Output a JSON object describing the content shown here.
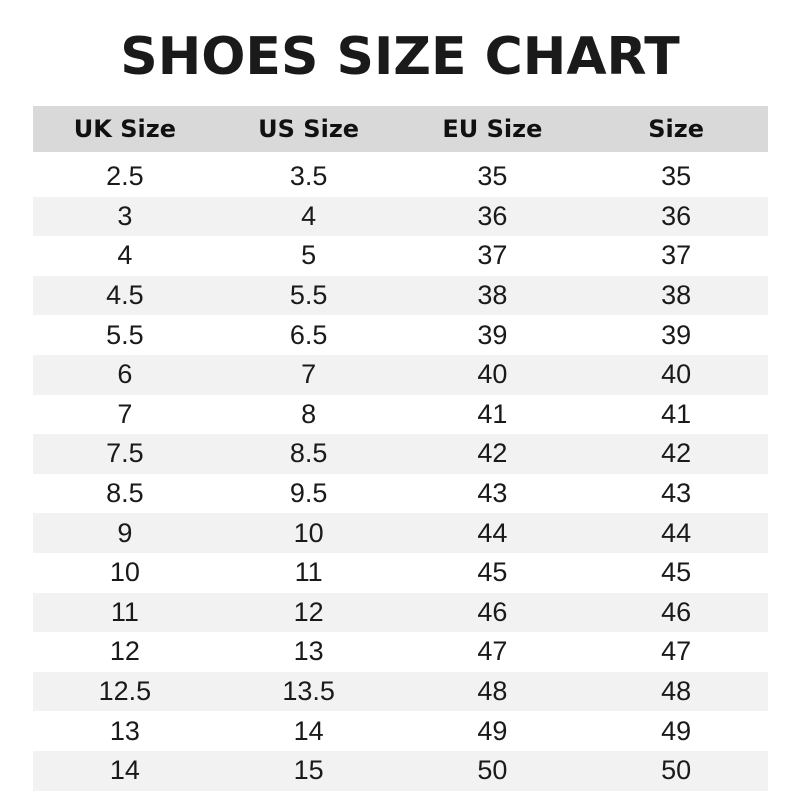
{
  "title": "SHOES SIZE CHART",
  "colors": {
    "header_bg": "#d9d9d9",
    "alt_row_bg": "#f2f2f2",
    "text": "#1a1a1a"
  },
  "table": {
    "headers": [
      "UK Size",
      "US Size",
      "EU Size",
      "Size"
    ],
    "rows": [
      [
        "2.5",
        "3.5",
        "35",
        "35"
      ],
      [
        "3",
        "4",
        "36",
        "36"
      ],
      [
        "4",
        "5",
        "37",
        "37"
      ],
      [
        "4.5",
        "5.5",
        "38",
        "38"
      ],
      [
        "5.5",
        "6.5",
        "39",
        "39"
      ],
      [
        "6",
        "7",
        "40",
        "40"
      ],
      [
        "7",
        "8",
        "41",
        "41"
      ],
      [
        "7.5",
        "8.5",
        "42",
        "42"
      ],
      [
        "8.5",
        "9.5",
        "43",
        "43"
      ],
      [
        "9",
        "10",
        "44",
        "44"
      ],
      [
        "10",
        "11",
        "45",
        "45"
      ],
      [
        "11",
        "12",
        "46",
        "46"
      ],
      [
        "12",
        "13",
        "47",
        "47"
      ],
      [
        "12.5",
        "13.5",
        "48",
        "48"
      ],
      [
        "13",
        "14",
        "49",
        "49"
      ],
      [
        "14",
        "15",
        "50",
        "50"
      ]
    ]
  }
}
